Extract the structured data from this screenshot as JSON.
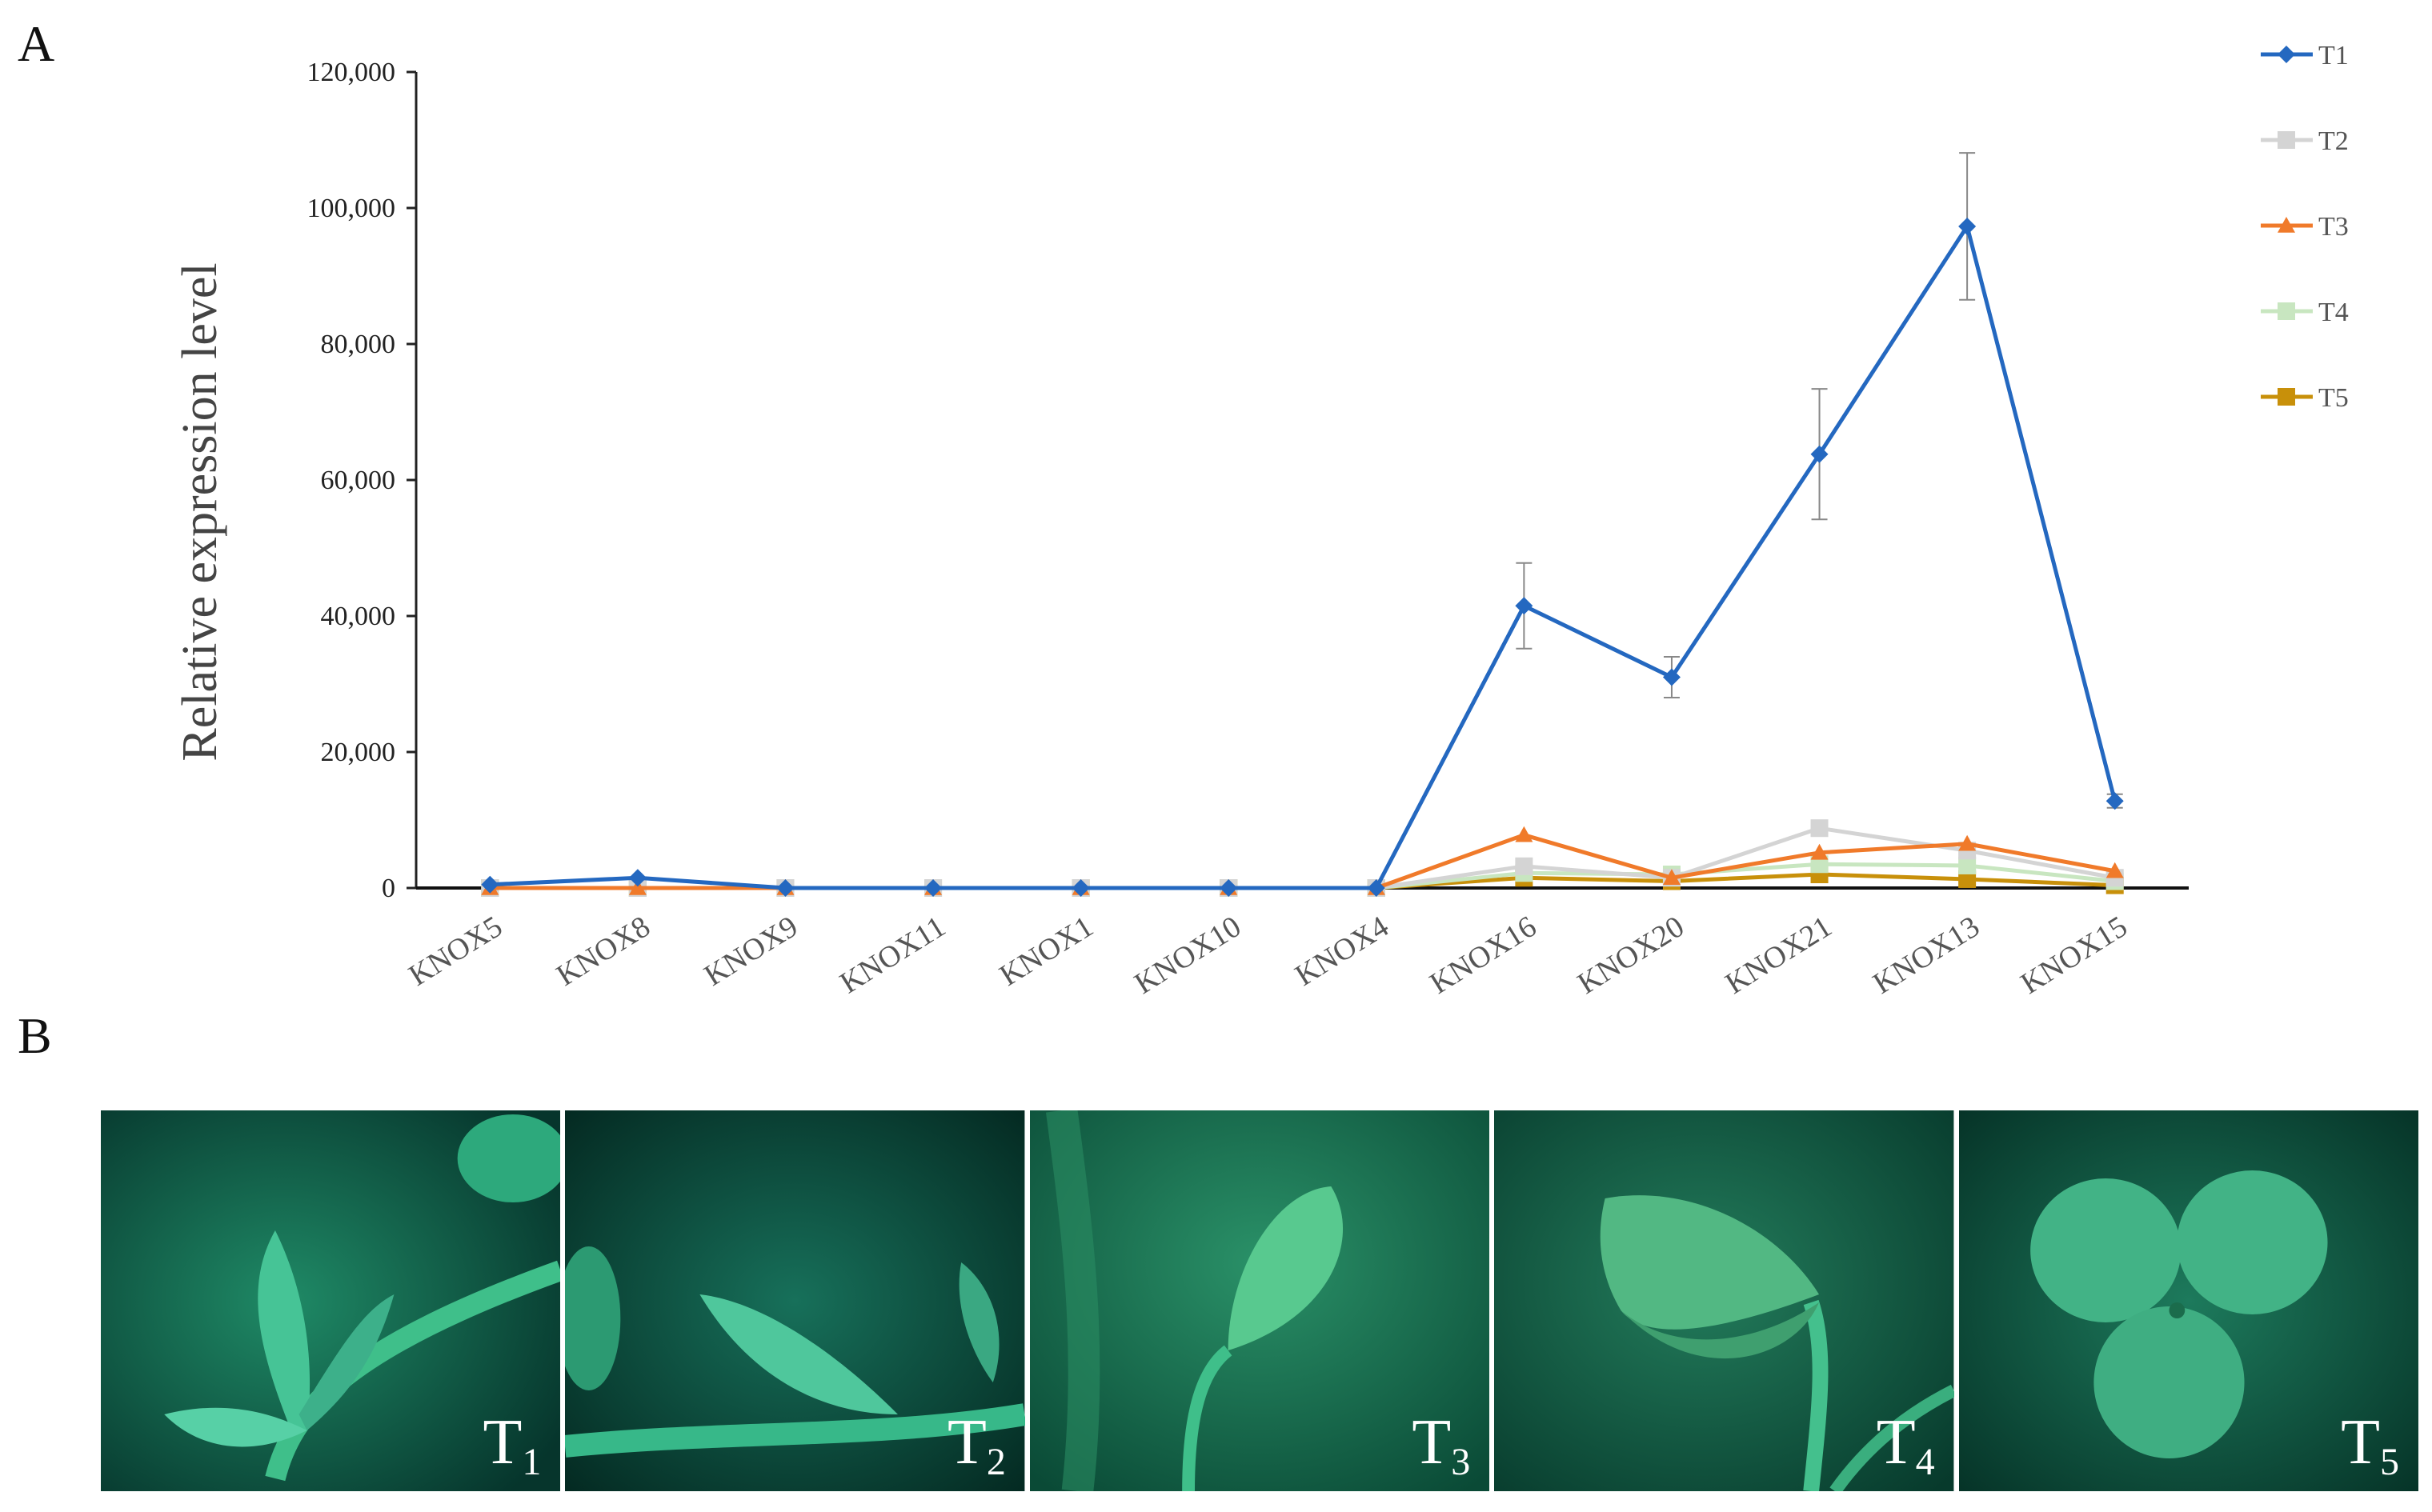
{
  "panel_a_letter": "A",
  "panel_b_letter": "B",
  "chart_data": {
    "type": "line",
    "categories": [
      "KNOX5",
      "KNOX8",
      "KNOX9",
      "KNOX11",
      "KNOX1",
      "KNOX10",
      "KNOX4",
      "KNOX16",
      "KNOX20",
      "KNOX21",
      "KNOX13",
      "KNOX15"
    ],
    "ylabel": "Relative expression level",
    "xlabel": "",
    "ylim": [
      0,
      120000
    ],
    "yticks": [
      0,
      20000,
      40000,
      60000,
      80000,
      100000,
      120000
    ],
    "ytick_labels": [
      "0",
      "20,000",
      "40,000",
      "60,000",
      "80,000",
      "100,000",
      "120,000"
    ],
    "legend_position": "top-right",
    "series": [
      {
        "name": "T1",
        "color": "#2468c0",
        "marker": "diamond",
        "values": [
          500,
          1500,
          0,
          0,
          0,
          0,
          0,
          41500,
          31000,
          63800,
          97300,
          12800
        ],
        "errors": [
          0,
          0,
          0,
          0,
          0,
          0,
          0,
          6300,
          3000,
          9600,
          10800,
          1000
        ]
      },
      {
        "name": "T2",
        "color": "#d4d4d4",
        "marker": "square",
        "values": [
          0,
          0,
          0,
          0,
          0,
          0,
          0,
          3200,
          1500,
          8800,
          5500,
          1500
        ],
        "errors": [
          0,
          0,
          0,
          0,
          0,
          0,
          0,
          0,
          0,
          0,
          0,
          0
        ]
      },
      {
        "name": "T3",
        "color": "#f07a2a",
        "marker": "triangle",
        "values": [
          0,
          0,
          0,
          0,
          0,
          0,
          0,
          7800,
          1500,
          5200,
          6500,
          2500
        ],
        "errors": [
          0,
          0,
          0,
          0,
          0,
          0,
          0,
          0,
          0,
          0,
          0,
          0
        ]
      },
      {
        "name": "T4",
        "color": "#c8e6c0",
        "marker": "square",
        "values": [
          0,
          0,
          0,
          0,
          0,
          0,
          0,
          2200,
          2000,
          3500,
          3300,
          1000
        ],
        "errors": [
          0,
          0,
          0,
          0,
          0,
          0,
          0,
          0,
          0,
          0,
          0,
          0
        ]
      },
      {
        "name": "T5",
        "color": "#c8900a",
        "marker": "square",
        "values": [
          0,
          0,
          0,
          0,
          0,
          0,
          0,
          1500,
          1000,
          2000,
          1300,
          400
        ],
        "errors": [
          0,
          0,
          0,
          0,
          0,
          0,
          0,
          0,
          0,
          0,
          0,
          0
        ]
      }
    ]
  },
  "photos": [
    {
      "label": "T",
      "sub": "1"
    },
    {
      "label": "T",
      "sub": "2"
    },
    {
      "label": "T",
      "sub": "3"
    },
    {
      "label": "T",
      "sub": "4"
    },
    {
      "label": "T",
      "sub": "5"
    }
  ]
}
